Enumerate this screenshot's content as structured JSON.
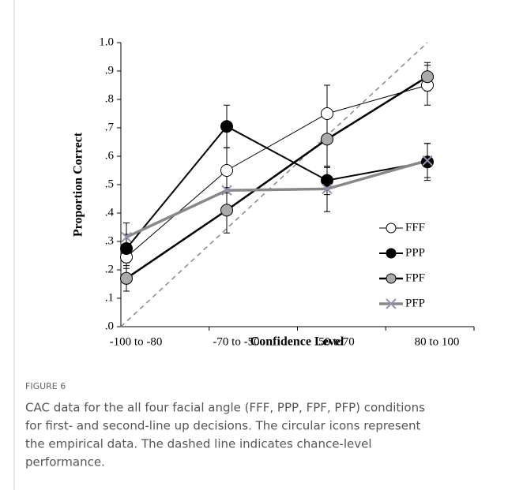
{
  "chart_data": {
    "type": "line",
    "y_label": "Proportion Correct",
    "x_label": "Confidence Level",
    "categories": [
      "-100 to -80",
      "-70 to -50",
      "50 to70",
      "80 to 100"
    ],
    "series": [
      {
        "name": "FFF",
        "color": "#ffffff",
        "values": [
          0.245,
          0.55,
          0.75,
          0.85
        ],
        "errors": [
          0.04,
          0.08,
          0.1,
          0.07
        ]
      },
      {
        "name": "PPP",
        "color": "#000000",
        "values": [
          0.275,
          0.705,
          0.515,
          0.58
        ],
        "errors": [
          0.05,
          0.075,
          0.05,
          0.065
        ]
      },
      {
        "name": "FPF",
        "color": "#aaaaaa",
        "values": [
          0.17,
          0.41,
          0.66,
          0.88
        ],
        "errors": [
          0.045,
          0.08,
          0.1,
          0.05
        ]
      },
      {
        "name": "PFP",
        "color": "#888888",
        "values": [
          0.315,
          0.48,
          0.485,
          0.585
        ],
        "errors": [
          0.05,
          0.07,
          0.08,
          0.06
        ]
      }
    ],
    "ylim": [
      0,
      1
    ],
    "yticks": [
      {
        "value": 0,
        "label": ".0"
      },
      {
        "value": 0.1,
        "label": ".1"
      },
      {
        "value": 0.2,
        "label": ".2"
      },
      {
        "value": 0.3,
        "label": ".3"
      },
      {
        "value": 0.4,
        "label": ".4"
      },
      {
        "value": 0.5,
        "label": ".5"
      },
      {
        "value": 0.6,
        "label": ".6"
      },
      {
        "value": 0.7,
        "label": ".7"
      },
      {
        "value": 0.8,
        "label": ".8"
      },
      {
        "value": 0.9,
        "label": ".9"
      },
      {
        "value": 1,
        "label": "1.0"
      }
    ]
  },
  "caption": {
    "label": "FIGURE 6",
    "lines": [
      "CAC data for the all four facial angle (FFF, PPP, FPF, PFP) conditions",
      "for first- and second-line up decisions. The circular icons represent",
      "the empirical data. The dashed line indicates chance-level",
      "performance."
    ]
  }
}
